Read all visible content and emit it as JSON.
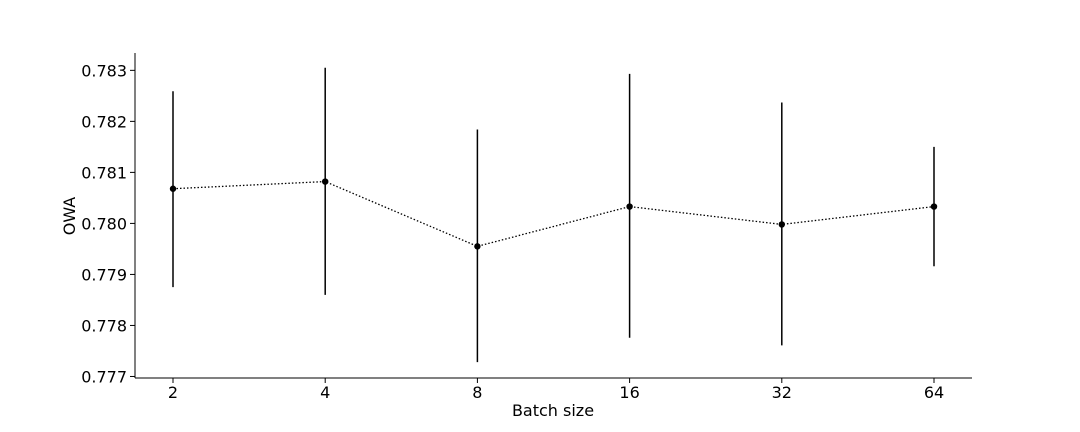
{
  "chart_data": {
    "type": "line",
    "title": "",
    "xlabel": "Batch size",
    "ylabel": "OWA",
    "categories": [
      "2",
      "4",
      "8",
      "16",
      "32",
      "64"
    ],
    "series": [
      {
        "values": [
          0.78068,
          0.78082,
          0.77955,
          0.78033,
          0.77998,
          0.78033
        ],
        "error_low": [
          0.77875,
          0.7786,
          0.77728,
          0.77776,
          0.77761,
          0.77916
        ],
        "error_high": [
          0.78259,
          0.78305,
          0.78184,
          0.78293,
          0.78237,
          0.7815
        ],
        "line_style": "dotted",
        "marker": "circle",
        "color": "#000000"
      }
    ],
    "ylim": [
      0.77697,
      0.78334
    ],
    "yticks": [
      "0.777",
      "0.778",
      "0.779",
      "0.780",
      "0.781",
      "0.782",
      "0.783"
    ],
    "grid": false,
    "legend": "none"
  }
}
